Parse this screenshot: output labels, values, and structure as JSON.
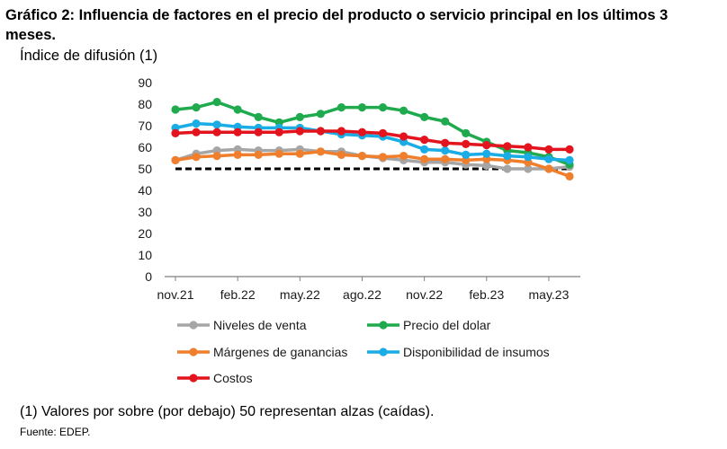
{
  "header": {
    "title": "Gráfico 2: Influencia de factores en el precio del producto o servicio principal en los últimos 3 meses.",
    "subtitle": "Índice de difusión (1)"
  },
  "footer": {
    "note": "(1) Valores por sobre (por debajo) 50 representan alzas (caídas).",
    "source": "Fuente: EDEP."
  },
  "chart_data": {
    "type": "line",
    "title": "Gráfico 2: Influencia de factores en el precio del producto o servicio principal en los últimos 3 meses.",
    "ylabel": "Índice de difusión (1)",
    "ylim": [
      0,
      90
    ],
    "yticks": [
      0,
      10,
      20,
      30,
      40,
      50,
      60,
      70,
      80,
      90
    ],
    "x": [
      "nov.21",
      "dic.21",
      "ene.22",
      "feb.22",
      "mar.22",
      "abr.22",
      "may.22",
      "jun.22",
      "jul.22",
      "ago.22",
      "sept.22",
      "oct.22",
      "nov.22",
      "dic.22",
      "ene.23",
      "feb.23",
      "mar.23",
      "abr.23",
      "may.23",
      "jun.23"
    ],
    "xtick_labels": [
      "nov.21",
      "feb.22",
      "may.22",
      "ago.22",
      "nov.22",
      "feb.23",
      "may.23"
    ],
    "xtick_indices": [
      0,
      3,
      6,
      9,
      12,
      15,
      18
    ],
    "grid": false,
    "legend_position": "bottom",
    "reference_line": {
      "value": 50,
      "style": "dashed",
      "color": "#000000"
    },
    "series": [
      {
        "name": "Niveles de venta",
        "color": "#a6a6a6",
        "values": [
          54,
          57,
          58.5,
          59,
          58.5,
          58.5,
          59,
          58,
          58,
          56,
          55,
          54,
          53,
          53,
          52,
          51.5,
          50,
          50,
          50,
          51
        ]
      },
      {
        "name": "Precio del dolar",
        "color": "#1faa4e",
        "values": [
          77.5,
          78.5,
          81,
          77.5,
          74,
          71.5,
          74,
          75.5,
          78.5,
          78.5,
          78.5,
          77,
          74,
          72,
          66.5,
          62.5,
          58.5,
          57.5,
          55.5,
          52
        ]
      },
      {
        "name": "Márgenes de ganancias",
        "color": "#f07f2d",
        "values": [
          54,
          55.5,
          56,
          56.5,
          56.5,
          57,
          57,
          58,
          56.5,
          56,
          55.5,
          56,
          54.5,
          54.5,
          54,
          54.5,
          54,
          53,
          50,
          46.5
        ]
      },
      {
        "name": "Disponibilidad de insumos",
        "color": "#1aace4",
        "values": [
          69,
          71,
          70.5,
          69.5,
          69,
          69,
          69,
          67.5,
          66,
          65.5,
          65,
          62.5,
          59,
          58.5,
          56.5,
          57,
          56,
          55.5,
          54.5,
          54
        ]
      },
      {
        "name": "Costos",
        "color": "#e3141d",
        "values": [
          66.5,
          67,
          67,
          67,
          67,
          67,
          67.5,
          67.5,
          67.5,
          67,
          66.5,
          65,
          63.5,
          62,
          61.5,
          61,
          60.5,
          60,
          59,
          59
        ]
      }
    ]
  }
}
